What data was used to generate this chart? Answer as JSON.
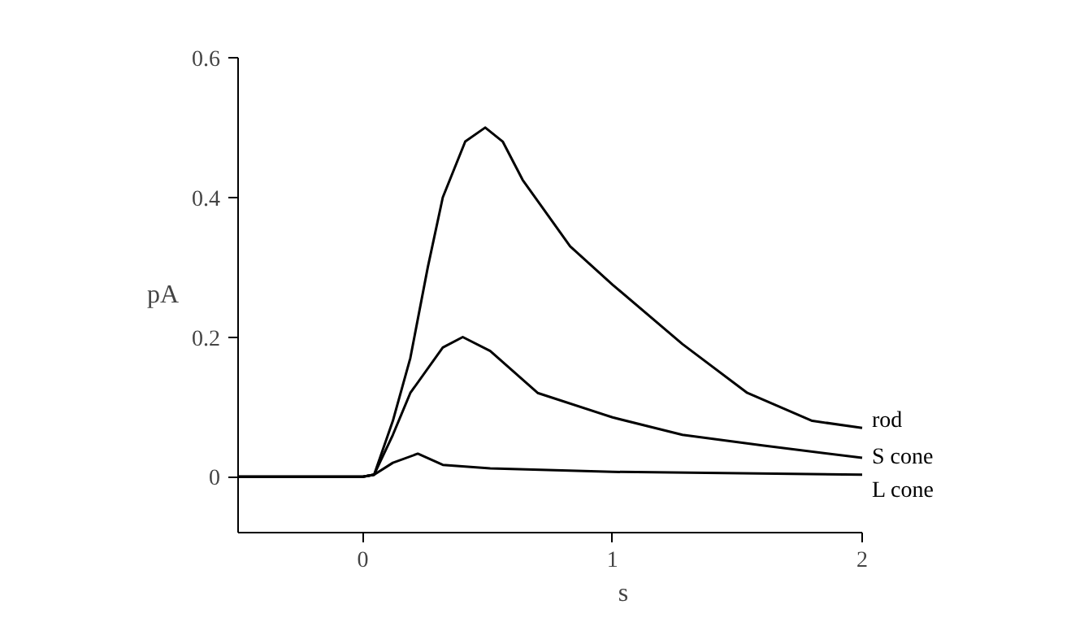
{
  "chart_data": {
    "type": "line",
    "xlabel": "s",
    "ylabel": "pA",
    "xlim": [
      -0.5,
      2
    ],
    "ylim": [
      -0.08,
      0.6
    ],
    "xticks": [
      0,
      1,
      2
    ],
    "yticks": [
      0,
      0.2,
      0.4,
      0.6
    ],
    "grid": false,
    "marker": "none",
    "line_style": "solid",
    "series": [
      {
        "name": "rod",
        "color": "#000000",
        "x": [
          -0.5,
          0,
          0.045,
          0.12,
          0.19,
          0.26,
          0.32,
          0.41,
          0.49,
          0.56,
          0.64,
          0.83,
          1.0,
          1.28,
          1.54,
          1.8,
          2.0
        ],
        "values": [
          0,
          0,
          0.003,
          0.08,
          0.17,
          0.3,
          0.4,
          0.48,
          0.5,
          0.48,
          0.425,
          0.33,
          0.275,
          0.19,
          0.12,
          0.08,
          0.07
        ]
      },
      {
        "name": "S cone",
        "color": "#000000",
        "x": [
          -0.5,
          0,
          0.045,
          0.12,
          0.19,
          0.32,
          0.4,
          0.51,
          0.7,
          1.0,
          1.28,
          1.6,
          2.0
        ],
        "values": [
          0,
          0,
          0.003,
          0.06,
          0.12,
          0.185,
          0.2,
          0.18,
          0.12,
          0.085,
          0.06,
          0.045,
          0.027
        ]
      },
      {
        "name": "L cone",
        "color": "#000000",
        "x": [
          -0.5,
          0,
          0.045,
          0.12,
          0.22,
          0.32,
          0.51,
          1.0,
          2.0
        ],
        "values": [
          0,
          0,
          0.003,
          0.02,
          0.033,
          0.017,
          0.012,
          0.007,
          0.003
        ]
      }
    ]
  }
}
